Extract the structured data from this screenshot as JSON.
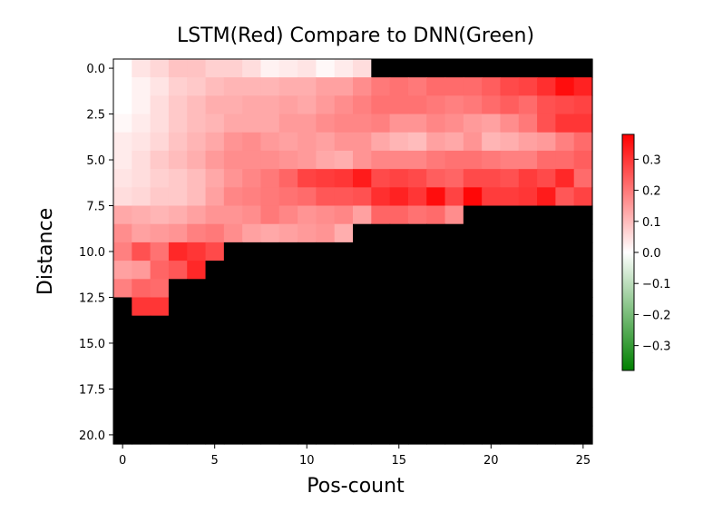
{
  "chart_data": {
    "type": "heatmap",
    "title": "LSTM(Red) Compare to DNN(Green)",
    "xlabel": "Pos-count",
    "ylabel": "Distance",
    "x_range": [
      -0.5,
      25.5
    ],
    "y_range": [
      -0.5,
      20.5
    ],
    "xticks": [
      "0",
      "5",
      "10",
      "15",
      "20",
      "25"
    ],
    "yticks": [
      "0.0",
      "2.5",
      "5.0",
      "7.5",
      "10.0",
      "12.5",
      "15.0",
      "17.5",
      "20.0"
    ],
    "colorbar": {
      "min": -0.38,
      "max": 0.38,
      "ticks": [
        "0.3",
        "0.2",
        "0.1",
        "0.0",
        "−0.1",
        "−0.2",
        "−0.3"
      ],
      "tick_values": [
        0.3,
        0.2,
        0.1,
        0.0,
        -0.1,
        -0.2,
        -0.3
      ],
      "positive_color": "#ff0000",
      "zero_color": "#ffffff",
      "negative_color": "#008000"
    },
    "missing_color": "#000000",
    "rows": [
      [
        0.0,
        0.04,
        0.06,
        0.09,
        0.09,
        0.07,
        0.07,
        0.05,
        0.02,
        0.03,
        0.04,
        0.01,
        0.03,
        0.05,
        null,
        null,
        null,
        null,
        null,
        null,
        null,
        null,
        null,
        null,
        null,
        null
      ],
      [
        0.0,
        0.02,
        0.04,
        0.07,
        0.08,
        0.1,
        0.11,
        0.11,
        0.11,
        0.12,
        0.12,
        0.14,
        0.14,
        0.17,
        0.2,
        0.21,
        0.2,
        0.22,
        0.22,
        0.22,
        0.24,
        0.27,
        0.28,
        0.31,
        0.36,
        0.33
      ],
      [
        0.0,
        0.02,
        0.05,
        0.08,
        0.1,
        0.12,
        0.12,
        0.13,
        0.13,
        0.14,
        0.13,
        0.15,
        0.17,
        0.19,
        0.21,
        0.21,
        0.21,
        0.2,
        0.19,
        0.2,
        0.22,
        0.24,
        0.22,
        0.26,
        0.27,
        0.28
      ],
      [
        0.01,
        0.03,
        0.05,
        0.08,
        0.1,
        0.11,
        0.13,
        0.13,
        0.13,
        0.15,
        0.15,
        0.17,
        0.18,
        0.18,
        0.19,
        0.16,
        0.16,
        0.18,
        0.17,
        0.15,
        0.14,
        0.17,
        0.2,
        0.26,
        0.3,
        0.3
      ],
      [
        0.03,
        0.04,
        0.06,
        0.09,
        0.11,
        0.13,
        0.16,
        0.17,
        0.15,
        0.14,
        0.15,
        0.14,
        0.16,
        0.16,
        0.13,
        0.11,
        0.1,
        0.14,
        0.13,
        0.16,
        0.11,
        0.12,
        0.14,
        0.15,
        0.19,
        0.22
      ],
      [
        0.03,
        0.05,
        0.08,
        0.1,
        0.12,
        0.15,
        0.17,
        0.17,
        0.17,
        0.16,
        0.15,
        0.13,
        0.12,
        0.16,
        0.18,
        0.18,
        0.18,
        0.2,
        0.21,
        0.21,
        0.2,
        0.19,
        0.19,
        0.22,
        0.22,
        0.24
      ],
      [
        0.04,
        0.05,
        0.07,
        0.08,
        0.1,
        0.13,
        0.16,
        0.18,
        0.2,
        0.23,
        0.28,
        0.29,
        0.3,
        0.34,
        0.27,
        0.28,
        0.27,
        0.24,
        0.23,
        0.27,
        0.27,
        0.26,
        0.29,
        0.27,
        0.32,
        0.22
      ],
      [
        0.05,
        0.06,
        0.08,
        0.08,
        0.1,
        0.14,
        0.18,
        0.19,
        0.2,
        0.21,
        0.22,
        0.25,
        0.25,
        0.26,
        0.31,
        0.33,
        0.3,
        0.36,
        0.28,
        0.37,
        0.29,
        0.29,
        0.3,
        0.34,
        0.25,
        0.28
      ],
      [
        0.13,
        0.12,
        0.11,
        0.12,
        0.14,
        0.16,
        0.16,
        0.17,
        0.2,
        0.18,
        0.16,
        0.17,
        0.18,
        0.14,
        0.23,
        0.23,
        0.21,
        0.22,
        0.17,
        null,
        null,
        null,
        null,
        null,
        null,
        null
      ],
      [
        0.17,
        0.14,
        0.15,
        0.16,
        0.19,
        0.2,
        0.17,
        0.14,
        0.13,
        0.14,
        0.15,
        0.16,
        0.12,
        null,
        null,
        null,
        null,
        null,
        null,
        null,
        null,
        null,
        null,
        null,
        null,
        null
      ],
      [
        0.19,
        0.26,
        0.21,
        0.32,
        0.3,
        0.27,
        null,
        null,
        null,
        null,
        null,
        null,
        null,
        null,
        null,
        null,
        null,
        null,
        null,
        null,
        null,
        null,
        null,
        null,
        null,
        null
      ],
      [
        0.14,
        0.15,
        0.23,
        0.25,
        0.32,
        null,
        null,
        null,
        null,
        null,
        null,
        null,
        null,
        null,
        null,
        null,
        null,
        null,
        null,
        null,
        null,
        null,
        null,
        null,
        null,
        null
      ],
      [
        0.19,
        0.23,
        0.22,
        null,
        null,
        null,
        null,
        null,
        null,
        null,
        null,
        null,
        null,
        null,
        null,
        null,
        null,
        null,
        null,
        null,
        null,
        null,
        null,
        null,
        null,
        null
      ],
      [
        null,
        0.3,
        0.3,
        null,
        null,
        null,
        null,
        null,
        null,
        null,
        null,
        null,
        null,
        null,
        null,
        null,
        null,
        null,
        null,
        null,
        null,
        null,
        null,
        null,
        null,
        null
      ],
      [
        null,
        null,
        null,
        null,
        null,
        null,
        null,
        null,
        null,
        null,
        null,
        null,
        null,
        null,
        null,
        null,
        null,
        null,
        null,
        null,
        null,
        null,
        null,
        null,
        null,
        null
      ],
      [
        null,
        null,
        null,
        null,
        null,
        null,
        null,
        null,
        null,
        null,
        null,
        null,
        null,
        null,
        null,
        null,
        null,
        null,
        null,
        null,
        null,
        null,
        null,
        null,
        null,
        null
      ],
      [
        null,
        null,
        null,
        null,
        null,
        null,
        null,
        null,
        null,
        null,
        null,
        null,
        null,
        null,
        null,
        null,
        null,
        null,
        null,
        null,
        null,
        null,
        null,
        null,
        null,
        null
      ],
      [
        null,
        null,
        null,
        null,
        null,
        null,
        null,
        null,
        null,
        null,
        null,
        null,
        null,
        null,
        null,
        null,
        null,
        null,
        null,
        null,
        null,
        null,
        null,
        null,
        null,
        null
      ],
      [
        null,
        null,
        null,
        null,
        null,
        null,
        null,
        null,
        null,
        null,
        null,
        null,
        null,
        null,
        null,
        null,
        null,
        null,
        null,
        null,
        null,
        null,
        null,
        null,
        null,
        null
      ],
      [
        null,
        null,
        null,
        null,
        null,
        null,
        null,
        null,
        null,
        null,
        null,
        null,
        null,
        null,
        null,
        null,
        null,
        null,
        null,
        null,
        null,
        null,
        null,
        null,
        null,
        null
      ],
      [
        null,
        null,
        null,
        null,
        null,
        null,
        null,
        null,
        null,
        null,
        null,
        null,
        null,
        null,
        null,
        null,
        null,
        null,
        null,
        null,
        null,
        null,
        null,
        null,
        null,
        null
      ]
    ]
  }
}
